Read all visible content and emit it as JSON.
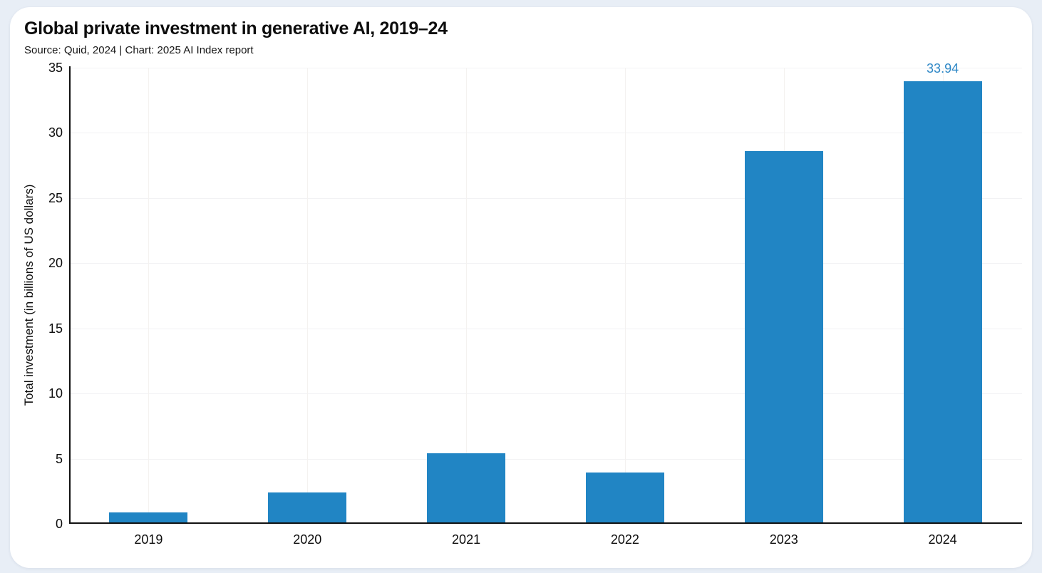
{
  "page": {
    "background_color": "#e8eef6",
    "card_background": "#ffffff",
    "text_color": "#0d0d0d"
  },
  "chart_data": {
    "type": "bar",
    "title": "Global private investment in generative AI, 2019–24",
    "subtitle": "Source: Quid, 2024 | Chart: 2025 AI Index report",
    "xlabel": "",
    "ylabel": "Total investment (in billions of US dollars)",
    "categories": [
      "2019",
      "2020",
      "2021",
      "2022",
      "2023",
      "2024"
    ],
    "values": [
      0.9,
      2.4,
      5.4,
      3.95,
      28.6,
      33.94
    ],
    "bar_labels": [
      "",
      "",
      "",
      "",
      "",
      "33.94"
    ],
    "ylim": [
      0,
      35
    ],
    "yticks": [
      0,
      5,
      10,
      15,
      20,
      25,
      30,
      35
    ],
    "grid": true,
    "legend": "none",
    "bar_color": "#2185c4",
    "value_label_color": "#2d87c6",
    "axis_color": "#111111"
  }
}
